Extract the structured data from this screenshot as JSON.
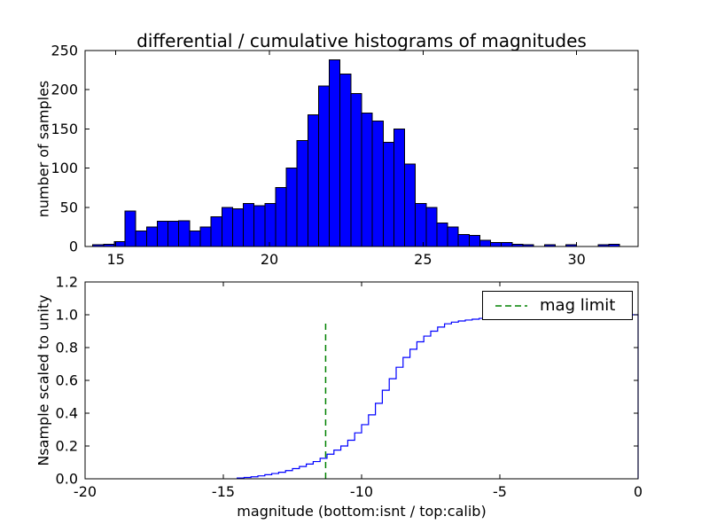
{
  "figure": {
    "background_color": "#ffffff"
  },
  "legend": {
    "label": "mag limit"
  },
  "chart_data": [
    {
      "type": "bar",
      "role": "differential-histogram",
      "title": "differential / cumulative histograms of magnitudes",
      "ylabel": "number of samples",
      "xlabel": "",
      "xlim": [
        14,
        32
      ],
      "ylim": [
        0,
        250
      ],
      "xticks": [
        15,
        20,
        25,
        30
      ],
      "yticks": [
        0,
        50,
        100,
        150,
        200,
        250
      ],
      "grid": false,
      "bar_color": "#0000ff",
      "bar_edge_color": "#000000",
      "bin_start": 13.9,
      "bin_width": 0.35,
      "values": [
        0,
        2,
        3,
        6,
        45,
        20,
        25,
        32,
        32,
        33,
        20,
        25,
        38,
        50,
        48,
        55,
        52,
        55,
        75,
        100,
        135,
        168,
        205,
        238,
        220,
        195,
        170,
        160,
        133,
        150,
        105,
        55,
        50,
        30,
        25,
        15,
        14,
        8,
        5,
        5,
        3,
        2,
        0,
        2,
        0,
        2,
        0,
        0,
        2,
        3
      ]
    },
    {
      "type": "line",
      "role": "cumulative-histogram",
      "title": "",
      "ylabel": "Nsample scaled to unity",
      "xlabel": "magnitude (bottom:isnt / top:calib)",
      "xlim": [
        -20,
        0
      ],
      "ylim": [
        0,
        1.2
      ],
      "xticks": [
        -20,
        -15,
        -10,
        -5,
        0
      ],
      "yticks": [
        "0.0",
        "0.2",
        "0.4",
        "0.6",
        "0.8",
        "1.0",
        "1.2"
      ],
      "grid": false,
      "line_color": "#0000ff",
      "step": true,
      "points": [
        [
          -14.5,
          0.005
        ],
        [
          -14.25,
          0.008
        ],
        [
          -14.0,
          0.012
        ],
        [
          -13.75,
          0.018
        ],
        [
          -13.5,
          0.025
        ],
        [
          -13.25,
          0.032
        ],
        [
          -13.0,
          0.04
        ],
        [
          -12.75,
          0.05
        ],
        [
          -12.5,
          0.062
        ],
        [
          -12.25,
          0.075
        ],
        [
          -12.0,
          0.09
        ],
        [
          -11.75,
          0.105
        ],
        [
          -11.5,
          0.125
        ],
        [
          -11.25,
          0.15
        ],
        [
          -11.0,
          0.175
        ],
        [
          -10.75,
          0.2
        ],
        [
          -10.5,
          0.235
        ],
        [
          -10.25,
          0.28
        ],
        [
          -10.0,
          0.33
        ],
        [
          -9.75,
          0.39
        ],
        [
          -9.5,
          0.46
        ],
        [
          -9.25,
          0.54
        ],
        [
          -9.0,
          0.61
        ],
        [
          -8.75,
          0.68
        ],
        [
          -8.5,
          0.74
        ],
        [
          -8.25,
          0.79
        ],
        [
          -8.0,
          0.835
        ],
        [
          -7.75,
          0.87
        ],
        [
          -7.5,
          0.9
        ],
        [
          -7.25,
          0.925
        ],
        [
          -7.0,
          0.945
        ],
        [
          -6.75,
          0.955
        ],
        [
          -6.5,
          0.962
        ],
        [
          -6.25,
          0.968
        ],
        [
          -6.0,
          0.973
        ],
        [
          -5.75,
          0.978
        ],
        [
          -5.5,
          0.982
        ],
        [
          -5.0,
          0.988
        ],
        [
          -4.5,
          0.992
        ],
        [
          -4.0,
          0.995
        ],
        [
          -3.5,
          0.997
        ],
        [
          -3.0,
          1.0
        ],
        [
          -2.0,
          1.0
        ],
        [
          0.0,
          1.0
        ]
      ],
      "mag_limit": {
        "x": -11.3,
        "y_bottom": 0.0,
        "y_top": 0.96,
        "color": "#008000",
        "style": "dashed",
        "label": "mag limit"
      }
    }
  ]
}
